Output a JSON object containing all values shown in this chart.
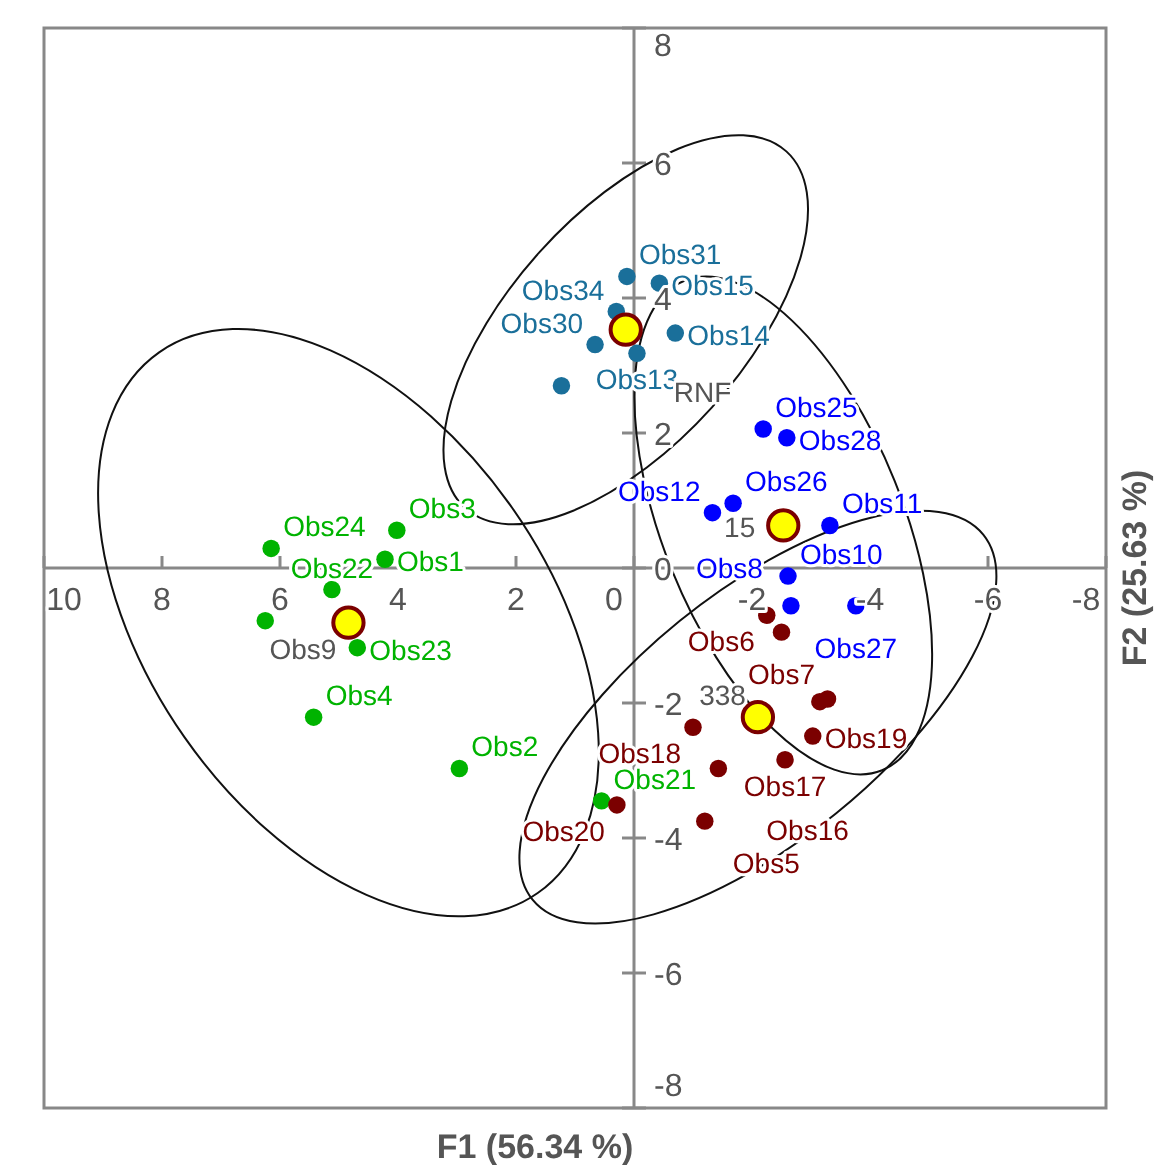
{
  "chart_data": {
    "type": "scatter",
    "xlabel": "F1 (56.34 %)",
    "ylabel": "F2 (25.63 %)",
    "xlim": [
      10,
      -8
    ],
    "ylim": [
      -8,
      8
    ],
    "xticks": [
      10,
      8,
      6,
      4,
      2,
      0,
      -2,
      -4,
      -6,
      -8
    ],
    "yticks": [
      -8,
      -6,
      -4,
      -2,
      0,
      2,
      4,
      6,
      8
    ],
    "grid": false,
    "marker": "circle",
    "series": [
      {
        "color": "#00b300",
        "x": [
          4.02,
          6.15,
          4.22,
          5.12,
          6.25,
          4.69,
          5.43,
          2.96,
          0.55
        ],
        "values": [
          0.56,
          0.29,
          0.13,
          -0.32,
          -0.78,
          -1.18,
          -2.21,
          -2.97,
          -3.45
        ]
      },
      {
        "color": "#0000ff",
        "x": [
          -2.19,
          -2.59,
          -1.33,
          -1.68,
          -3.32,
          -2.61,
          -2.66,
          -3.76
        ],
        "values": [
          2.06,
          1.93,
          0.82,
          0.96,
          0.63,
          -0.12,
          -0.56,
          -0.56
        ]
      },
      {
        "color": "#7b0000",
        "x": [
          -2.25,
          -2.5,
          -3.15,
          -3.28,
          -1.0,
          -3.03,
          -2.56,
          -1.43,
          0.29,
          -1.2
        ],
        "values": [
          -0.7,
          -0.95,
          -1.98,
          -1.94,
          -2.36,
          -2.49,
          -2.84,
          -2.97,
          -3.51,
          -3.75
        ]
      },
      {
        "color": "#1a6f9a",
        "x": [
          0.12,
          -0.43,
          0.66,
          -0.05,
          -0.7,
          1.23,
          0.3
        ],
        "values": [
          4.32,
          4.22,
          3.31,
          3.18,
          3.48,
          2.7,
          3.8
        ]
      },
      {
        "color": "#ffff00",
        "x": [
          4.84,
          -2.53,
          -2.1,
          0.14
        ],
        "values": [
          -0.81,
          0.63,
          -2.21,
          3.53
        ]
      }
    ],
    "annotations": [
      {
        "text": "Obs3",
        "x": 4.02,
        "y": 0.56
      },
      {
        "text": "Obs24",
        "x": 6.15,
        "y": 0.29
      },
      {
        "text": "Obs1",
        "x": 4.22,
        "y": 0.13
      },
      {
        "text": "Obs22",
        "x": 5.12,
        "y": -0.32
      },
      {
        "text": "Obs23",
        "x": 4.69,
        "y": -1.18
      },
      {
        "text": "Obs4",
        "x": 5.43,
        "y": -2.21
      },
      {
        "text": "Obs2",
        "x": 2.96,
        "y": -2.97
      },
      {
        "text": "Obs21",
        "x": 0.55,
        "y": -3.45
      },
      {
        "text": "Obs25",
        "x": -2.19,
        "y": 2.06
      },
      {
        "text": "Obs28",
        "x": -2.59,
        "y": 1.93
      },
      {
        "text": "Obs12",
        "x": -1.33,
        "y": 0.82
      },
      {
        "text": "Obs26",
        "x": -1.68,
        "y": 0.96
      },
      {
        "text": "Obs11",
        "x": -3.32,
        "y": 0.63
      },
      {
        "text": "Obs10",
        "x": -2.61,
        "y": -0.12
      },
      {
        "text": "Obs8",
        "x": -2.66,
        "y": -0.56
      },
      {
        "text": "Obs27",
        "x": -3.76,
        "y": -0.56
      },
      {
        "text": "Obs6",
        "x": -2.25,
        "y": -0.7
      },
      {
        "text": "Obs7",
        "x": -2.5,
        "y": -0.95
      },
      {
        "text": "Obs18",
        "x": -1.0,
        "y": -2.36
      },
      {
        "text": "Obs19",
        "x": -3.03,
        "y": -2.49
      },
      {
        "text": "Obs17",
        "x": -2.56,
        "y": -2.84
      },
      {
        "text": "Obs16",
        "x": -1.43,
        "y": -2.97
      },
      {
        "text": "Obs20",
        "x": 0.29,
        "y": -3.51
      },
      {
        "text": "Obs5",
        "x": -1.2,
        "y": -3.75
      },
      {
        "text": "Obs31",
        "x": 0.12,
        "y": 4.32
      },
      {
        "text": "Obs15",
        "x": -0.43,
        "y": 4.22
      },
      {
        "text": "Obs30",
        "x": 0.66,
        "y": 3.31
      },
      {
        "text": "Obs13",
        "x": -0.05,
        "y": 3.18
      },
      {
        "text": "Obs14",
        "x": -0.7,
        "y": 3.48
      },
      {
        "text": "Obs34",
        "x": 0.3,
        "y": 3.8
      },
      {
        "text": "Obs9",
        "x": 4.84,
        "y": -0.81
      },
      {
        "text": "15",
        "x": -2.53,
        "y": 0.63
      },
      {
        "text": "338",
        "x": -2.1,
        "y": -2.21
      },
      {
        "text": "RNF",
        "x": 0.14,
        "y": 3.53
      }
    ]
  }
}
